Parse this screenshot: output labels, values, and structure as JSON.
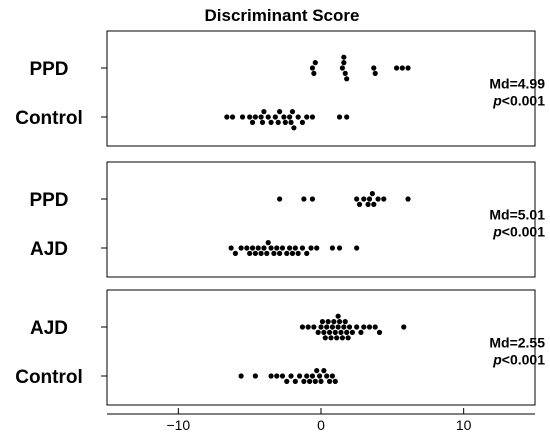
{
  "chart_data": {
    "type": "scatter",
    "title": "Discriminant Score",
    "xlim": [
      -15,
      15
    ],
    "x_ticks": [
      -10,
      0,
      10
    ],
    "x_tick_labels": [
      "−10",
      "0",
      "10"
    ],
    "legend": "none",
    "grid": false,
    "colors": {
      "point": "#000000",
      "axis": "#000000"
    },
    "panels": [
      {
        "groups": [
          {
            "label": "PPD",
            "values": [
              -0.6,
              -0.5,
              -0.4,
              1.5,
              1.7,
              1.6,
              1.8,
              1.6,
              3.7,
              3.8,
              5.3,
              5.7,
              6.1
            ]
          },
          {
            "label": "Control",
            "values": [
              -6.6,
              -6.2,
              -5.5,
              -5.0,
              -4.8,
              -4.6,
              -4.2,
              -4.1,
              -4.0,
              -3.7,
              -3.5,
              -3.2,
              -3.0,
              -2.9,
              -2.6,
              -2.5,
              -2.2,
              -2.1,
              -2.0,
              -1.9,
              -1.6,
              -1.3,
              -1.0,
              -0.6,
              1.3,
              1.8
            ]
          }
        ],
        "stat_label": "Md=4.99",
        "p_italic": "p",
        "p_rest": "<0.001"
      },
      {
        "groups": [
          {
            "label": "PPD",
            "values": [
              -2.9,
              -1.2,
              -0.6,
              2.5,
              2.7,
              3.0,
              3.3,
              3.4,
              3.6,
              3.7,
              4.0,
              4.4,
              6.1
            ]
          },
          {
            "label": "AJD",
            "values": [
              -6.3,
              -6.0,
              -5.6,
              -5.2,
              -5.0,
              -4.8,
              -4.6,
              -4.4,
              -4.2,
              -4.0,
              -3.8,
              -3.7,
              -3.5,
              -3.3,
              -3.1,
              -2.9,
              -2.7,
              -2.4,
              -2.2,
              -2.0,
              -1.8,
              -1.6,
              -1.3,
              -1.0,
              -0.7,
              -0.3,
              0.8,
              1.3,
              2.5
            ]
          }
        ],
        "stat_label": "Md=5.01",
        "p_italic": "p",
        "p_rest": "<0.001"
      },
      {
        "groups": [
          {
            "label": "AJD",
            "values": [
              -1.3,
              -0.9,
              -0.5,
              -0.2,
              0.0,
              0.1,
              0.2,
              0.3,
              0.4,
              0.5,
              0.6,
              0.7,
              0.8,
              0.9,
              1.0,
              1.1,
              1.2,
              1.2,
              1.3,
              1.4,
              1.5,
              1.6,
              1.7,
              1.8,
              1.9,
              2.0,
              2.2,
              2.5,
              2.8,
              3.0,
              3.4,
              3.8,
              4.1,
              5.8
            ]
          },
          {
            "label": "Control",
            "values": [
              -5.6,
              -4.6,
              -3.5,
              -3.1,
              -2.7,
              -2.4,
              -2.1,
              -1.8,
              -1.5,
              -1.2,
              -1.0,
              -0.8,
              -0.6,
              -0.4,
              -0.3,
              -0.1,
              0.0,
              0.2,
              0.4,
              0.6,
              0.8,
              1.0
            ]
          }
        ],
        "stat_label": "Md=2.55",
        "p_italic": "p",
        "p_rest": "<0.001"
      }
    ]
  }
}
